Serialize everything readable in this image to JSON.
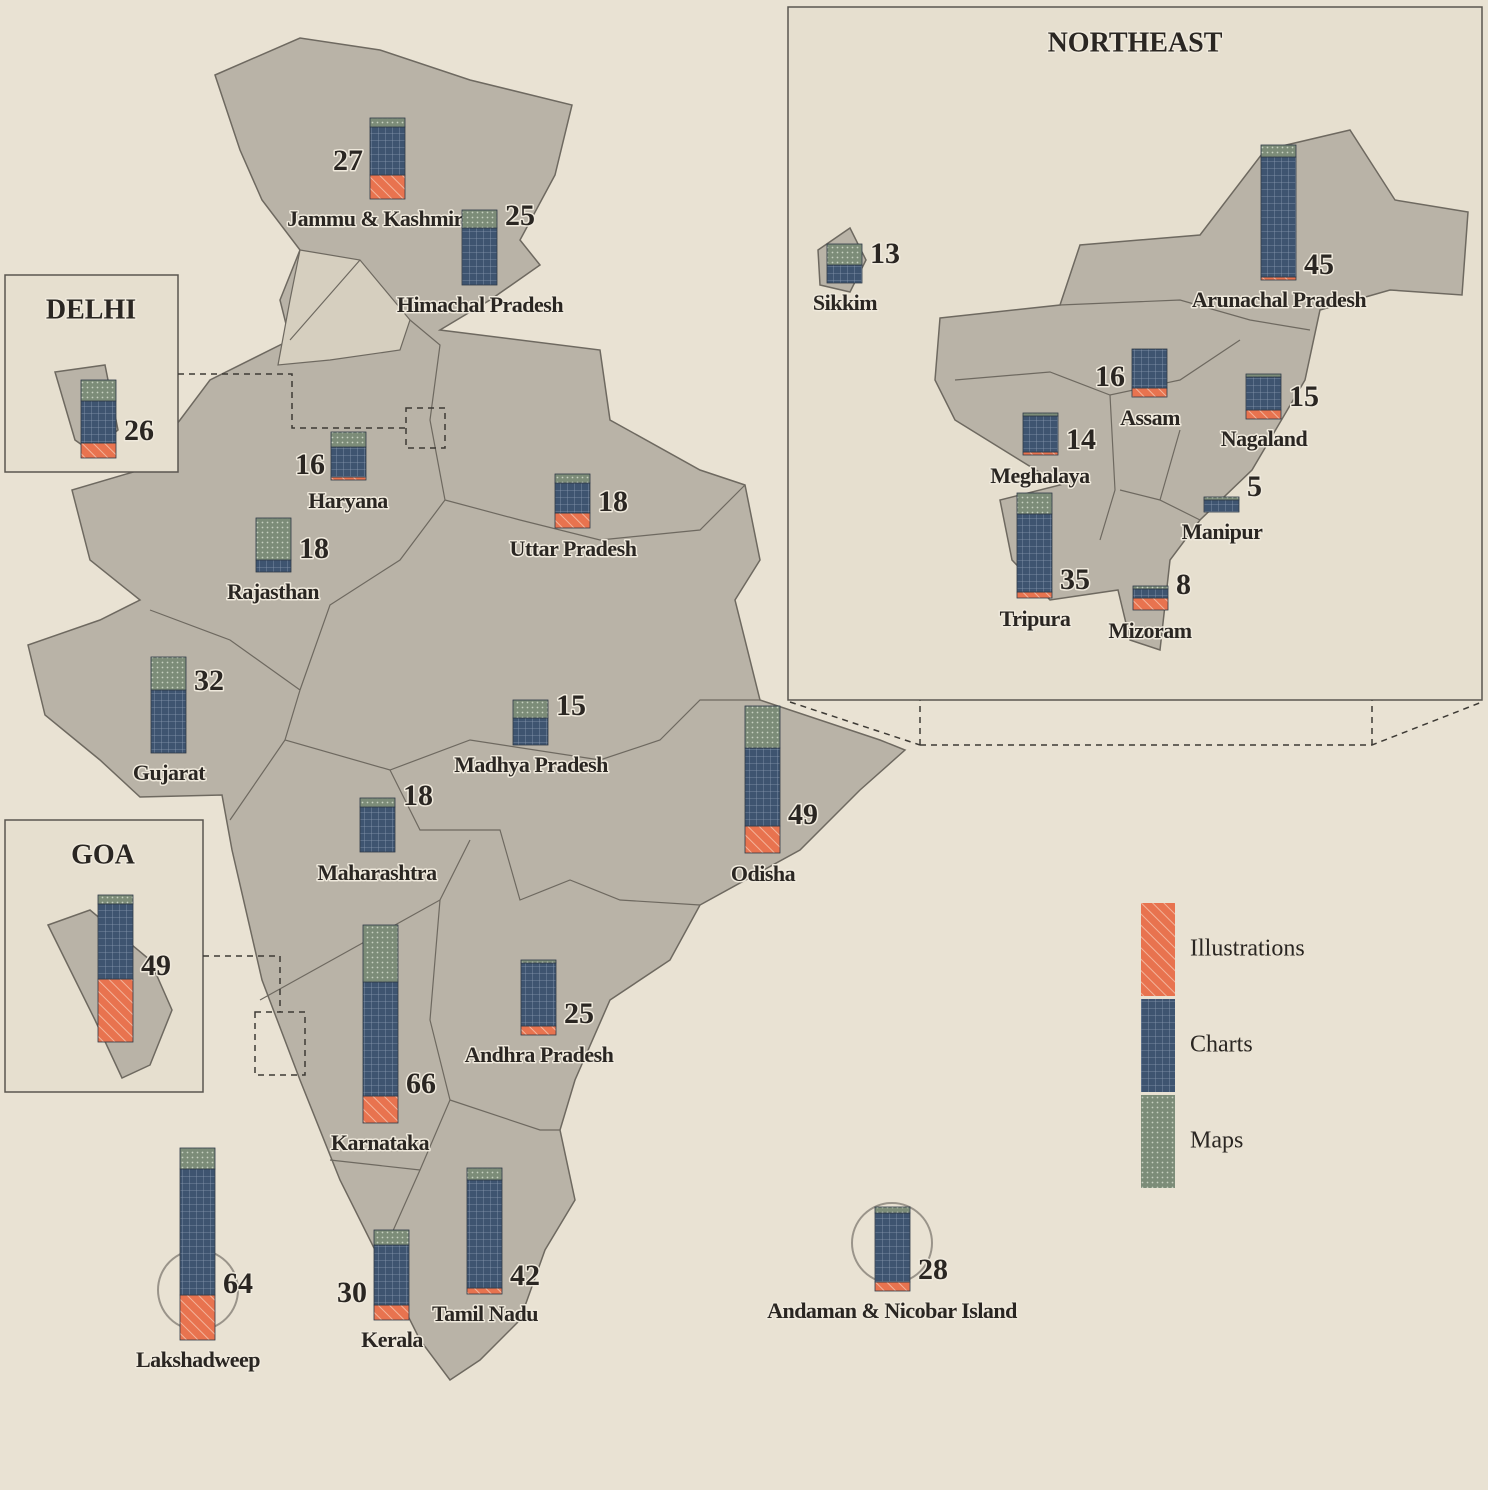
{
  "legend": [
    {
      "name": "Illustrations",
      "color": "#e8734f"
    },
    {
      "name": "Charts",
      "color": "#3e5470"
    },
    {
      "name": "Maps",
      "color": "#7c8c78"
    }
  ],
  "northeast_title": "NORTHEAST",
  "states": [
    {
      "name": "Jammu & Kashmir",
      "total": 27,
      "values": [
        8,
        16,
        3
      ]
    },
    {
      "name": "Himachal Pradesh",
      "total": 25,
      "values": [
        0,
        19,
        6
      ]
    },
    {
      "name": "DELHI",
      "total": 26,
      "values": [
        5,
        14,
        7
      ]
    },
    {
      "name": "Haryana",
      "total": 16,
      "values": [
        1,
        10,
        5
      ]
    },
    {
      "name": "Rajasthan",
      "total": 18,
      "values": [
        0,
        4,
        14
      ]
    },
    {
      "name": "Uttar Pradesh",
      "total": 18,
      "values": [
        5,
        10,
        3
      ]
    },
    {
      "name": "Gujarat",
      "total": 32,
      "values": [
        0,
        21,
        11
      ]
    },
    {
      "name": "Madhya Pradesh",
      "total": 15,
      "values": [
        0,
        9,
        6
      ]
    },
    {
      "name": "Maharashtra",
      "total": 18,
      "values": [
        0,
        15,
        3
      ]
    },
    {
      "name": "Odisha",
      "total": 49,
      "values": [
        9,
        26,
        14
      ]
    },
    {
      "name": "GOA",
      "total": 49,
      "values": [
        21,
        25,
        3
      ]
    },
    {
      "name": "Karnataka",
      "total": 66,
      "values": [
        9,
        38,
        19
      ]
    },
    {
      "name": "Andhra Pradesh",
      "total": 25,
      "values": [
        3,
        21,
        1
      ]
    },
    {
      "name": "Lakshadweep",
      "total": 64,
      "values": [
        15,
        42,
        7
      ]
    },
    {
      "name": "Kerala",
      "total": 30,
      "values": [
        5,
        20,
        5
      ]
    },
    {
      "name": "Tamil Nadu",
      "total": 42,
      "values": [
        2,
        36,
        4
      ]
    },
    {
      "name": "Andaman & Nicobar Island",
      "total": 28,
      "values": [
        3,
        23,
        2
      ]
    },
    {
      "name": "Sikkim",
      "total": 13,
      "values": [
        0,
        6,
        7
      ]
    },
    {
      "name": "Arunachal Pradesh",
      "total": 45,
      "values": [
        1,
        40,
        4
      ]
    },
    {
      "name": "Assam",
      "total": 16,
      "values": [
        3,
        13,
        0
      ]
    },
    {
      "name": "Nagaland",
      "total": 15,
      "values": [
        3,
        11,
        1
      ]
    },
    {
      "name": "Meghalaya",
      "total": 14,
      "values": [
        1,
        12,
        1
      ]
    },
    {
      "name": "Manipur",
      "total": 5,
      "values": [
        0,
        4,
        1
      ]
    },
    {
      "name": "Tripura",
      "total": 35,
      "values": [
        2,
        26,
        7
      ]
    },
    {
      "name": "Mizoram",
      "total": 8,
      "values": [
        4,
        3,
        1
      ]
    }
  ]
}
